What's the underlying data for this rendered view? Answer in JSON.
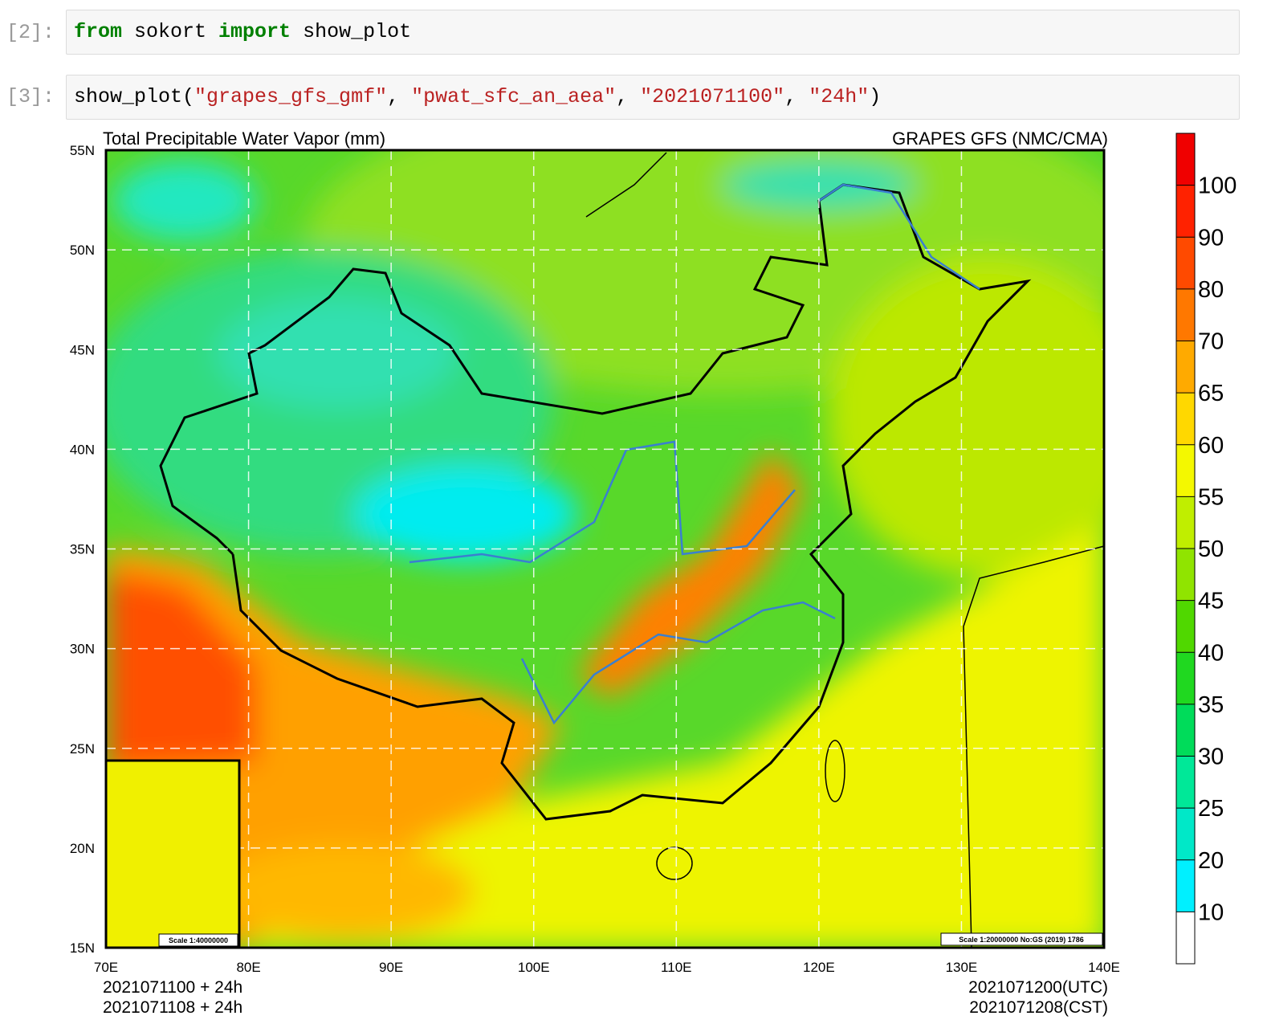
{
  "cells": [
    {
      "prompt": "[2]:",
      "code": [
        {
          "text": "from",
          "kind": "keyword"
        },
        {
          "text": " sokort ",
          "kind": "plain"
        },
        {
          "text": "import",
          "kind": "keyword"
        },
        {
          "text": " show_plot",
          "kind": "plain"
        }
      ]
    },
    {
      "prompt": "[3]:",
      "code": [
        {
          "text": "show_plot(",
          "kind": "plain"
        },
        {
          "text": "\"grapes_gfs_gmf\"",
          "kind": "string"
        },
        {
          "text": ", ",
          "kind": "plain"
        },
        {
          "text": "\"pwat_sfc_an_aea\"",
          "kind": "string"
        },
        {
          "text": ", ",
          "kind": "plain"
        },
        {
          "text": "\"2021071100\"",
          "kind": "string"
        },
        {
          "text": ", ",
          "kind": "plain"
        },
        {
          "text": "\"24h\"",
          "kind": "string"
        },
        {
          "text": ")",
          "kind": "plain"
        }
      ]
    }
  ],
  "figure": {
    "title": "Total Precipitable Water Vapor (mm)",
    "source": "GRAPES GFS (NMC/CMA)",
    "lat_labels": [
      "55N",
      "50N",
      "45N",
      "40N",
      "35N",
      "30N",
      "25N",
      "20N",
      "15N"
    ],
    "lon_labels": [
      "70E",
      "80E",
      "90E",
      "100E",
      "110E",
      "120E",
      "130E",
      "140E"
    ],
    "colorbar_levels": [
      10,
      20,
      25,
      30,
      35,
      40,
      45,
      50,
      55,
      60,
      65,
      70,
      80,
      90,
      100
    ],
    "colorbar_colors": [
      "#ffffff",
      "#00f0ff",
      "#00e8c8",
      "#00e898",
      "#00dc5a",
      "#20d820",
      "#50d800",
      "#90e400",
      "#c0ee00",
      "#f4f800",
      "#ffd800",
      "#ffaa00",
      "#ff7800",
      "#ff4a00",
      "#ff2200",
      "#f00000"
    ],
    "inset_scale": "Scale 1:40000000",
    "scale_note": "Scale 1:20000000 No:GS (2019) 1786",
    "init_lines": [
      "2021071100 + 24h",
      "2021071108 + 24h"
    ],
    "valid_lines": [
      "2021071200(UTC)",
      "2021071208(CST)"
    ]
  }
}
